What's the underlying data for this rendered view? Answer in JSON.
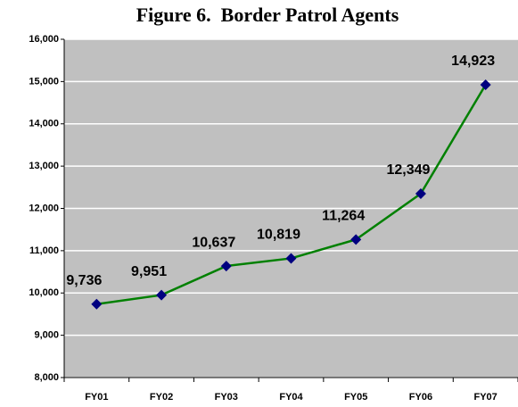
{
  "chart_data": {
    "type": "line",
    "title": "Figure 6.  Border Patrol Agents",
    "categories": [
      "FY01",
      "FY02",
      "FY03",
      "FY04",
      "FY05",
      "FY06",
      "FY07"
    ],
    "series": [
      {
        "name": "Border Patrol Agents",
        "color": "#008000",
        "marker_color": "#000080",
        "values": [
          9736,
          9951,
          10637,
          10819,
          11264,
          12349,
          14923
        ],
        "value_labels": [
          "9,736",
          "9,951",
          "10,637",
          "10,819",
          "11,264",
          "12,349",
          "14,923"
        ]
      }
    ],
    "ylim": [
      8000,
      16000
    ],
    "yticks": [
      {
        "value": 8000,
        "label": "8,000"
      },
      {
        "value": 9000,
        "label": "9,000"
      },
      {
        "value": 10000,
        "label": "10,000"
      },
      {
        "value": 11000,
        "label": "11,000"
      },
      {
        "value": 12000,
        "label": "12,000"
      },
      {
        "value": 13000,
        "label": "13,000"
      },
      {
        "value": 14000,
        "label": "14,000"
      },
      {
        "value": 15000,
        "label": "15,000"
      },
      {
        "value": 16000,
        "label": "16,000"
      }
    ],
    "grid": true
  }
}
